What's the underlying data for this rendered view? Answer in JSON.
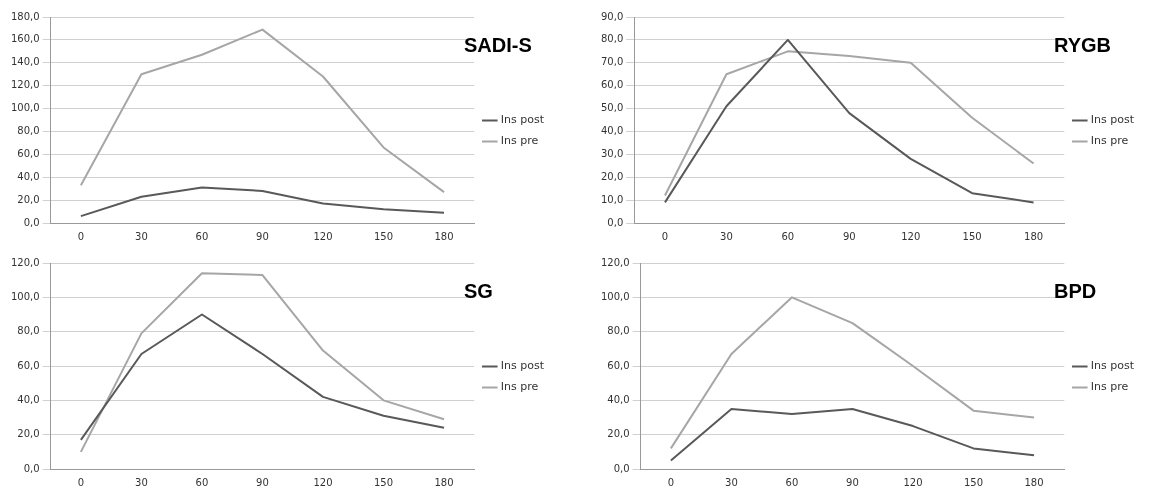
{
  "chart_data": [
    {
      "type": "line",
      "title": "SADI-S",
      "categories": [
        "0",
        "30",
        "60",
        "90",
        "120",
        "150",
        "180"
      ],
      "series": [
        {
          "name": "Ins post",
          "color": "#595959",
          "values": [
            6,
            23,
            31,
            28,
            17,
            12,
            9
          ]
        },
        {
          "name": "Ins pre",
          "color": "#a6a6a6",
          "values": [
            33,
            130,
            147,
            169,
            128,
            66,
            27
          ]
        }
      ],
      "ylim": [
        0,
        180
      ],
      "yticks": [
        {
          "value": 0,
          "label": "0,0"
        },
        {
          "value": 20,
          "label": "20,0"
        },
        {
          "value": 40,
          "label": "40,0"
        },
        {
          "value": 60,
          "label": "60,0"
        },
        {
          "value": 80,
          "label": "80,0"
        },
        {
          "value": 100,
          "label": "100,0"
        },
        {
          "value": 120,
          "label": "120,0"
        },
        {
          "value": 140,
          "label": "140,0"
        },
        {
          "value": 160,
          "label": "160,0"
        },
        {
          "value": 180,
          "label": "180,0"
        }
      ],
      "grid": "y",
      "legend": "right",
      "marker": "none",
      "line_style": "solid"
    },
    {
      "type": "line",
      "title": "RYGB",
      "categories": [
        "0",
        "30",
        "60",
        "90",
        "120",
        "150",
        "180"
      ],
      "series": [
        {
          "name": "Ins post",
          "color": "#595959",
          "values": [
            9,
            51,
            80,
            48,
            28,
            13,
            9
          ]
        },
        {
          "name": "Ins pre",
          "color": "#a6a6a6",
          "values": [
            12,
            65,
            75,
            73,
            70,
            46,
            26
          ]
        }
      ],
      "ylim": [
        0,
        90
      ],
      "yticks": [
        {
          "value": 0,
          "label": "0,0"
        },
        {
          "value": 10,
          "label": "10,0"
        },
        {
          "value": 20,
          "label": "20,0"
        },
        {
          "value": 30,
          "label": "30,0"
        },
        {
          "value": 40,
          "label": "40,0"
        },
        {
          "value": 50,
          "label": "50,0"
        },
        {
          "value": 60,
          "label": "60,0"
        },
        {
          "value": 70,
          "label": "70,0"
        },
        {
          "value": 80,
          "label": "80,0"
        },
        {
          "value": 90,
          "label": "90,0"
        }
      ],
      "grid": "y",
      "legend": "right",
      "marker": "none",
      "line_style": "solid"
    },
    {
      "type": "line",
      "title": "SG",
      "categories": [
        "0",
        "30",
        "60",
        "90",
        "120",
        "150",
        "180"
      ],
      "series": [
        {
          "name": "Ins post",
          "color": "#595959",
          "values": [
            17,
            67,
            90,
            67,
            42,
            31,
            24
          ]
        },
        {
          "name": "Ins pre",
          "color": "#a6a6a6",
          "values": [
            10,
            79,
            114,
            113,
            69,
            40,
            29
          ]
        }
      ],
      "ylim": [
        0,
        120
      ],
      "yticks": [
        {
          "value": 0,
          "label": "0,0"
        },
        {
          "value": 20,
          "label": "20,0"
        },
        {
          "value": 40,
          "label": "40,0"
        },
        {
          "value": 60,
          "label": "60,0"
        },
        {
          "value": 80,
          "label": "80,0"
        },
        {
          "value": 100,
          "label": "100,0"
        },
        {
          "value": 120,
          "label": "120,0"
        }
      ],
      "grid": "y",
      "legend": "right",
      "marker": "none",
      "line_style": "solid"
    },
    {
      "type": "line",
      "title": "BPD",
      "categories": [
        "0",
        "30",
        "60",
        "90",
        "120",
        "150",
        "180"
      ],
      "series": [
        {
          "name": "Ins post",
          "color": "#595959",
          "values": [
            5,
            35,
            32,
            35,
            25,
            12,
            8
          ]
        },
        {
          "name": "Ins pre",
          "color": "#a6a6a6",
          "values": [
            12,
            67,
            100,
            85,
            60,
            34,
            30
          ]
        }
      ],
      "ylim": [
        0,
        120
      ],
      "yticks": [
        {
          "value": 0,
          "label": "0,0"
        },
        {
          "value": 20,
          "label": "20,0"
        },
        {
          "value": 40,
          "label": "40,0"
        },
        {
          "value": 60,
          "label": "60,0"
        },
        {
          "value": 80,
          "label": "80,0"
        },
        {
          "value": 100,
          "label": "100,0"
        },
        {
          "value": 120,
          "label": "120,0"
        }
      ],
      "grid": "y",
      "legend": "right",
      "marker": "none",
      "line_style": "solid"
    }
  ]
}
